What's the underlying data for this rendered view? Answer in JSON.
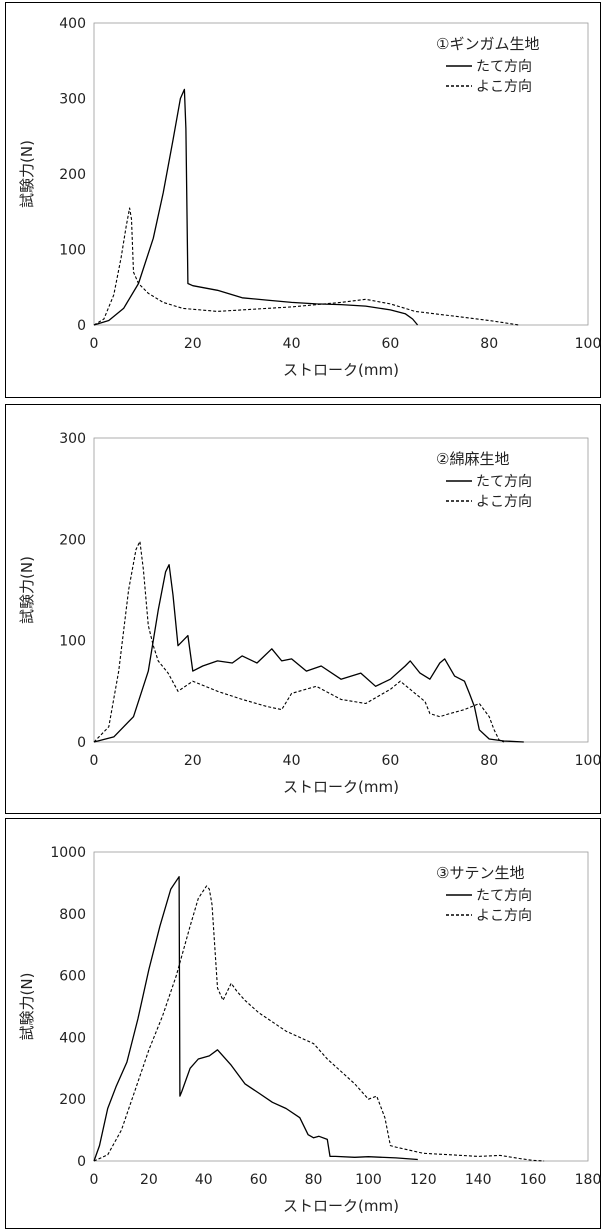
{
  "chart_data": [
    {
      "type": "line",
      "title": "①ギンガム生地",
      "xlabel": "ストローク(mm)",
      "ylabel": "試験力(N)",
      "xlim": [
        0,
        100
      ],
      "ylim": [
        0,
        400
      ],
      "xticks": [
        "0",
        "20",
        "40",
        "60",
        "80",
        "100"
      ],
      "yticks": [
        "0",
        "100",
        "200",
        "300",
        "400"
      ],
      "legend_position": "top-right",
      "series": [
        {
          "name": "たて方向",
          "style": "solid",
          "x": [
            0,
            3,
            6,
            9,
            12,
            14,
            16,
            17.5,
            18.3,
            18.6,
            19,
            20,
            25,
            30,
            35,
            40,
            45,
            50,
            55,
            60,
            63,
            64.5,
            65.5
          ],
          "y": [
            0,
            6,
            22,
            55,
            115,
            175,
            245,
            300,
            312,
            260,
            55,
            52,
            46,
            36,
            33,
            30,
            28,
            27,
            25,
            20,
            15,
            8,
            0
          ]
        },
        {
          "name": "よこ方向",
          "style": "dashed",
          "x": [
            0,
            2,
            4,
            5.5,
            6.5,
            7.2,
            7.6,
            8,
            9,
            11,
            14,
            18,
            25,
            30,
            40,
            50,
            55,
            60,
            65,
            70,
            75,
            80,
            83,
            86
          ],
          "y": [
            0,
            8,
            40,
            90,
            130,
            155,
            140,
            70,
            55,
            42,
            30,
            22,
            18,
            20,
            24,
            30,
            34,
            28,
            18,
            14,
            10,
            6,
            3,
            0
          ]
        }
      ]
    },
    {
      "type": "line",
      "title": "②綿麻生地",
      "xlabel": "ストローク(mm)",
      "ylabel": "試験力(N)",
      "xlim": [
        0,
        100
      ],
      "ylim": [
        0,
        300
      ],
      "xticks": [
        "0",
        "20",
        "40",
        "60",
        "80",
        "100"
      ],
      "yticks": [
        "0",
        "100",
        "200",
        "300"
      ],
      "legend_position": "top-right",
      "series": [
        {
          "name": "たて方向",
          "style": "solid",
          "x": [
            0,
            4,
            8,
            11,
            13,
            14.5,
            15.2,
            16,
            17,
            18,
            19,
            20,
            22,
            25,
            28,
            30,
            33,
            36,
            38,
            40,
            43,
            46,
            50,
            54,
            57,
            60,
            63,
            64,
            66,
            68,
            70,
            71,
            73,
            75,
            76,
            77,
            78,
            80,
            83,
            87
          ],
          "y": [
            0,
            5,
            25,
            70,
            130,
            168,
            175,
            145,
            95,
            100,
            105,
            70,
            75,
            80,
            78,
            85,
            78,
            92,
            80,
            82,
            70,
            75,
            62,
            68,
            55,
            62,
            75,
            80,
            68,
            62,
            78,
            82,
            65,
            60,
            48,
            35,
            12,
            3,
            1,
            0
          ]
        },
        {
          "name": "よこ方向",
          "style": "dashed",
          "x": [
            0,
            3,
            5,
            7,
            8.5,
            9.3,
            10,
            11,
            12,
            13,
            15,
            17,
            20,
            25,
            30,
            35,
            38,
            40,
            45,
            50,
            55,
            60,
            62,
            65,
            67,
            68,
            70,
            72,
            75,
            78,
            80,
            81,
            82,
            83
          ],
          "y": [
            0,
            15,
            70,
            150,
            190,
            198,
            170,
            115,
            95,
            80,
            68,
            50,
            60,
            50,
            42,
            35,
            32,
            48,
            55,
            42,
            38,
            52,
            60,
            48,
            40,
            28,
            25,
            28,
            32,
            38,
            25,
            12,
            2,
            0
          ]
        }
      ]
    },
    {
      "type": "line",
      "title": "③サテン生地",
      "xlabel": "ストローク(mm)",
      "ylabel": "試験力(N)",
      "xlim": [
        0,
        180
      ],
      "ylim": [
        0,
        1000
      ],
      "xticks": [
        "0",
        "20",
        "40",
        "60",
        "80",
        "100",
        "120",
        "140",
        "160",
        "180"
      ],
      "yticks": [
        "0",
        "200",
        "400",
        "600",
        "800",
        "1000"
      ],
      "legend_position": "top-right",
      "series": [
        {
          "name": "たて方向",
          "style": "solid",
          "x": [
            0,
            2,
            5,
            8,
            12,
            16,
            20,
            24,
            28,
            31,
            31.3,
            32,
            35,
            38,
            42,
            45,
            50,
            55,
            60,
            65,
            70,
            75,
            78,
            80,
            82,
            85,
            86,
            88,
            95,
            100,
            110,
            118
          ],
          "y": [
            0,
            50,
            170,
            240,
            320,
            460,
            620,
            760,
            880,
            920,
            210,
            225,
            300,
            330,
            340,
            360,
            310,
            250,
            220,
            190,
            170,
            140,
            85,
            75,
            80,
            70,
            15,
            15,
            12,
            14,
            10,
            5
          ]
        },
        {
          "name": "よこ方向",
          "style": "dashed",
          "x": [
            0,
            5,
            10,
            15,
            20,
            25,
            30,
            35,
            38,
            41,
            42,
            43,
            45,
            47,
            50,
            52,
            55,
            60,
            65,
            70,
            75,
            80,
            85,
            90,
            95,
            100,
            103,
            106,
            108,
            110,
            115,
            120,
            130,
            140,
            148,
            155,
            160,
            164
          ],
          "y": [
            0,
            20,
            100,
            230,
            360,
            470,
            600,
            760,
            850,
            890,
            880,
            830,
            560,
            520,
            575,
            550,
            520,
            480,
            450,
            420,
            400,
            380,
            330,
            290,
            250,
            200,
            210,
            140,
            50,
            45,
            35,
            25,
            20,
            15,
            18,
            8,
            2,
            0
          ]
        }
      ]
    }
  ]
}
